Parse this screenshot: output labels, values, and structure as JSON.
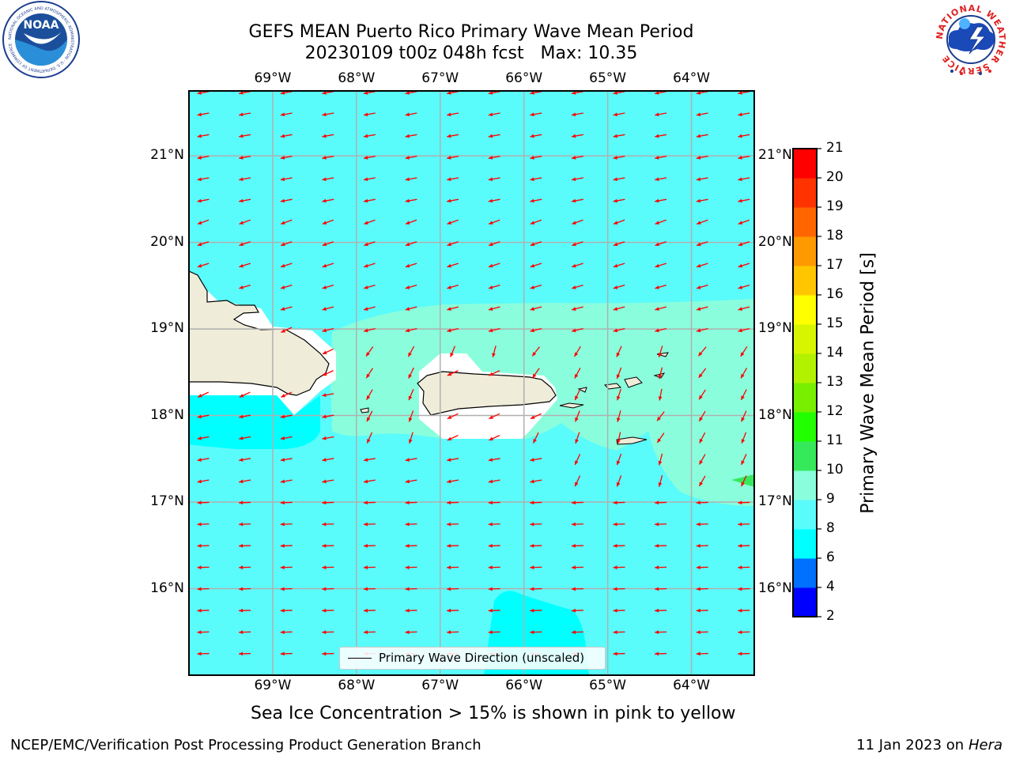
{
  "header": {
    "title_line1": "GEFS MEAN Puerto Rico Primary Wave Mean Period",
    "title_line2": "20230109 t00z 048h fcst   Max: 10.35"
  },
  "logos": {
    "noaa_text": "NOAA",
    "noaa_ring_text": "NATIONAL OCEANIC AND ATMOSPHERIC ADMINISTRATION · U.S. DEPARTMENT OF COMMERCE",
    "nws_ring_text": "NATIONAL WEATHER SERVICE"
  },
  "map": {
    "lon_labels": [
      "69°W",
      "68°W",
      "67°W",
      "66°W",
      "65°W",
      "64°W"
    ],
    "lat_labels": [
      "21°N",
      "20°N",
      "19°N",
      "18°N",
      "17°N",
      "16°N"
    ],
    "lon_values": [
      -69,
      -68,
      -67,
      -66,
      -65,
      -64
    ],
    "lat_values": [
      21,
      20,
      19,
      18,
      17,
      16
    ],
    "extent": {
      "lon_min": -70.0,
      "lon_max": -63.25,
      "lat_min": 15.0,
      "lat_max": 21.75
    },
    "arrow_direction": "toward west-southwest (from east-northeast)",
    "legend_label": "Primary Wave Direction (unscaled)",
    "arrow_color": "#ff0000",
    "land_color": "#efecd9",
    "colors": {
      "period_6_8": "#00ffff",
      "period_8_9": "#5afbfb",
      "period_9_10": "#8afedc",
      "period_10_11": "#35e95a"
    }
  },
  "colorbar": {
    "label": "Primary Wave Mean Period [s]",
    "ticks": [
      "21",
      "20",
      "19",
      "18",
      "17",
      "16",
      "15",
      "14",
      "13",
      "12",
      "11",
      "10",
      "9",
      "8",
      "6",
      "4",
      "2"
    ],
    "bins": [
      {
        "lo": 2,
        "hi": 4,
        "color": "#0000ff"
      },
      {
        "lo": 4,
        "hi": 6,
        "color": "#0070ff"
      },
      {
        "lo": 6,
        "hi": 8,
        "color": "#00ffff"
      },
      {
        "lo": 8,
        "hi": 9,
        "color": "#5afbfb"
      },
      {
        "lo": 9,
        "hi": 10,
        "color": "#8afedc"
      },
      {
        "lo": 10,
        "hi": 11,
        "color": "#35e95a"
      },
      {
        "lo": 11,
        "hi": 12,
        "color": "#22ff00"
      },
      {
        "lo": 12,
        "hi": 13,
        "color": "#79ef00"
      },
      {
        "lo": 13,
        "hi": 14,
        "color": "#b2f200"
      },
      {
        "lo": 14,
        "hi": 15,
        "color": "#d8f500"
      },
      {
        "lo": 15,
        "hi": 16,
        "color": "#ffff00"
      },
      {
        "lo": 16,
        "hi": 17,
        "color": "#ffc600"
      },
      {
        "lo": 17,
        "hi": 18,
        "color": "#ff9900"
      },
      {
        "lo": 18,
        "hi": 19,
        "color": "#ff6600"
      },
      {
        "lo": 19,
        "hi": 20,
        "color": "#ff3300"
      },
      {
        "lo": 20,
        "hi": 21,
        "color": "#ff0000"
      }
    ]
  },
  "caption": "Sea Ice Concentration > 15% is shown in pink to yellow",
  "footer": {
    "left": "NCEP/EMC/Verification Post Processing Product Generation Branch",
    "right_date": "11 Jan 2023 on ",
    "right_host": "Hera"
  }
}
